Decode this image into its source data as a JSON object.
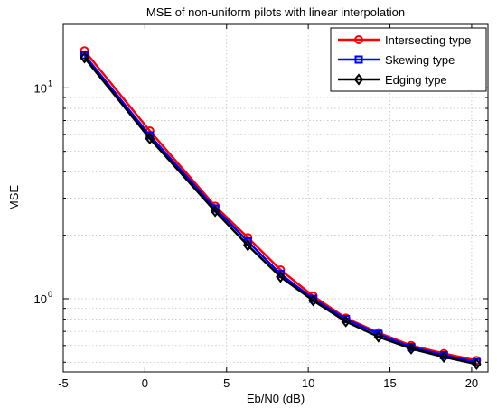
{
  "chart_data": {
    "type": "line",
    "title": "MSE of non-uniform pilots with linear interpolation",
    "xlabel": "Eb/N0 (dB)",
    "ylabel": "MSE",
    "xlim": [
      -5,
      21
    ],
    "ylim": [
      0.45,
      20
    ],
    "yscale": "log",
    "grid": true,
    "legend_position": "top-right",
    "x_ticks": [
      -5,
      0,
      5,
      10,
      15,
      20
    ],
    "x_tick_labels": [
      "-5",
      "0",
      "5",
      "10",
      "15",
      "20"
    ],
    "y_major_ticks": [
      1,
      10
    ],
    "y_tick_labels": [
      {
        "base": "10",
        "exp": "0"
      },
      {
        "base": "10",
        "exp": "1"
      }
    ],
    "x": [
      -3.7,
      0.3,
      4.3,
      6.3,
      8.3,
      10.3,
      12.3,
      14.3,
      16.3,
      18.3,
      20.3
    ],
    "series": [
      {
        "name": "Intersecting type",
        "color": "#ff0000",
        "marker": "circle",
        "values": [
          15.0,
          6.25,
          2.75,
          1.95,
          1.37,
          1.03,
          0.81,
          0.69,
          0.6,
          0.55,
          0.51
        ]
      },
      {
        "name": "Skewing type",
        "color": "#0000ff",
        "marker": "square",
        "values": [
          14.3,
          5.95,
          2.68,
          1.87,
          1.31,
          1.0,
          0.8,
          0.68,
          0.59,
          0.54,
          0.5
        ]
      },
      {
        "name": "Edging type",
        "color": "#000000",
        "marker": "diamond",
        "values": [
          13.9,
          5.75,
          2.6,
          1.79,
          1.27,
          0.98,
          0.78,
          0.66,
          0.58,
          0.53,
          0.49
        ]
      }
    ]
  }
}
